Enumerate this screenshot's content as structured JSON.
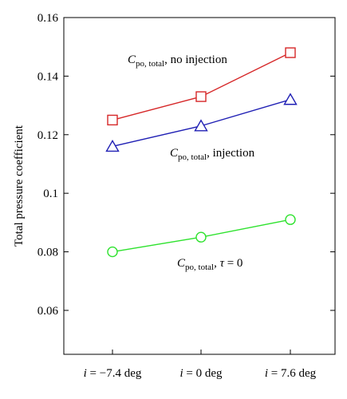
{
  "chart_data": {
    "type": "line",
    "categories": [
      "i = −7.4 deg",
      "i = 0 deg",
      "i = 7.6 deg"
    ],
    "category_parts": [
      {
        "var": "i",
        "rest": " = −7.4 deg"
      },
      {
        "var": "i",
        "rest": " = 0 deg"
      },
      {
        "var": "i",
        "rest": " = 7.6 deg"
      }
    ],
    "ylabel": "Total pressure coefficient",
    "ylim": [
      0.045,
      0.16
    ],
    "yticks": [
      0.06,
      0.08,
      0.1,
      0.12,
      0.14,
      0.16
    ],
    "ytick_labels": [
      "0.06",
      "0.08",
      "0.1",
      "0.12",
      "0.14",
      "0.16"
    ],
    "grid": false,
    "series": [
      {
        "key": "no_injection",
        "values": [
          0.125,
          0.133,
          0.148
        ],
        "color": "#d62728",
        "marker": "square",
        "label": {
          "var": "C",
          "sub": "po, total",
          "rest": ", no injection"
        }
      },
      {
        "key": "injection",
        "values": [
          0.116,
          0.123,
          0.132
        ],
        "color": "#1f1fb4",
        "marker": "triangle",
        "label": {
          "var": "C",
          "sub": "po, total",
          "rest": ", injection"
        }
      },
      {
        "key": "tau_zero",
        "values": [
          0.08,
          0.085,
          0.091
        ],
        "color": "#2ee22e",
        "marker": "circle",
        "label": {
          "var": "C",
          "sub": "po, total",
          "rest": ", ",
          "var2": "τ",
          "rest2": " = 0"
        }
      }
    ]
  }
}
